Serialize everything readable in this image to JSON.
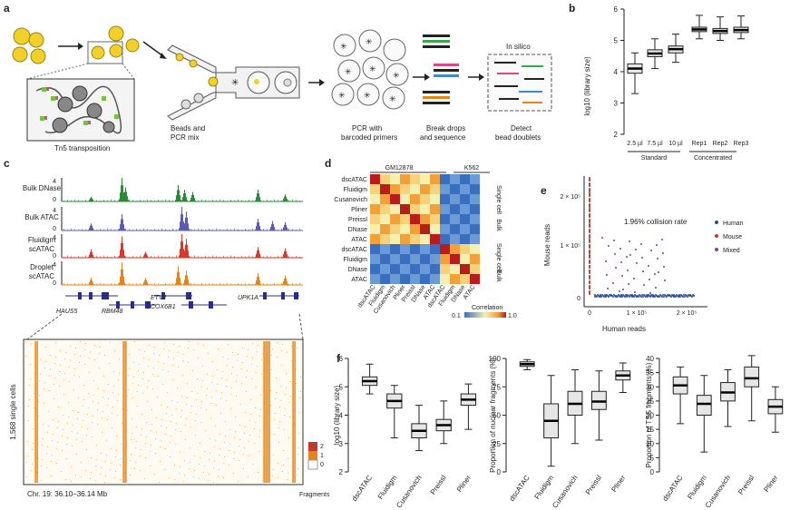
{
  "panel_labels": {
    "a": "a",
    "b": "b",
    "c": "c",
    "d": "d",
    "e": "e",
    "f": "f"
  },
  "panel_a": {
    "tn5_label": "Tn5 transposition",
    "beads_label_1": "Beads and",
    "beads_label_2": "PCR mix",
    "pcr_label_1": "PCR with",
    "pcr_label_2": "barcoded primers",
    "break_label_1": "Break drops",
    "break_label_2": "and sequence",
    "detect_label_1": "Detect",
    "detect_label_2": "bead doublets",
    "insilico": "In silico",
    "colors": {
      "cell": "#f3d028",
      "bead": "#e9e9e9",
      "arrow": "#222222"
    }
  },
  "panel_b": {
    "ylabel": "log10 (library size)",
    "ticks": [
      "2",
      "3",
      "4",
      "5",
      "6"
    ],
    "group_standard": "Standard",
    "group_concentrated": "Concentrated",
    "chart_data": {
      "type": "box",
      "categories": [
        "2.5 µl",
        "7.5 µl",
        "10 µl",
        "Rep1",
        "Rep2",
        "Rep3"
      ],
      "ylim": [
        2,
        6
      ],
      "boxes": [
        {
          "min": 3.3,
          "q1": 3.95,
          "median": 4.1,
          "q3": 4.25,
          "max": 4.6
        },
        {
          "min": 4.1,
          "q1": 4.48,
          "median": 4.58,
          "q3": 4.7,
          "max": 5.05
        },
        {
          "min": 4.3,
          "q1": 4.6,
          "median": 4.72,
          "q3": 4.82,
          "max": 5.2
        },
        {
          "min": 5.05,
          "q1": 5.28,
          "median": 5.35,
          "q3": 5.42,
          "max": 5.8
        },
        {
          "min": 5.0,
          "q1": 5.22,
          "median": 5.3,
          "q3": 5.38,
          "max": 5.75
        },
        {
          "min": 5.05,
          "q1": 5.25,
          "median": 5.33,
          "q3": 5.42,
          "max": 5.78
        }
      ]
    }
  },
  "panel_c": {
    "tracks": [
      "Bulk DNase",
      "Bulk ATAC",
      "Fluidigm scATAC",
      "Droplet scATAC"
    ],
    "track_label_lines": [
      [
        "Bulk DNase"
      ],
      [
        "Bulk ATAC"
      ],
      [
        "Fluidigm",
        "scATAC"
      ],
      [
        "Droplet",
        "scATAC"
      ]
    ],
    "ymax": [
      "4",
      "4",
      "4",
      "4"
    ],
    "ymin": "0",
    "track_colors": [
      "#2a8a3a",
      "#5b5bb5",
      "#d63a2a",
      "#e8821a"
    ],
    "genes": [
      "HAUS5",
      "RBM48",
      "ETV2",
      "COX6B1",
      "UPK1A"
    ],
    "heatmap_ylabel": "1,568 single cells",
    "coords": "Chr. 19: 36.10–36.14 Mb",
    "legend_title": "Fragments",
    "legend_ticks": [
      "2",
      "1",
      "0"
    ]
  },
  "panel_d": {
    "group_gm": "GM12878",
    "group_k562": "K562",
    "rows": [
      "dscATAC",
      "Fluidigm",
      "Cusanovich",
      "Pliner",
      "Preissl",
      "DNase",
      "ATAC",
      "dscATAC",
      "Fluidigm",
      "DNase",
      "ATAC"
    ],
    "side_single": "Single cell",
    "side_bulk": "Bulk",
    "legend_label": "Correlation",
    "legend_min": "0.1",
    "legend_max": "1.0"
  },
  "panel_e": {
    "ylabel": "Mouse reads",
    "xlabel": "Human reads",
    "annotation": "1.96% collision rate",
    "yticks": [
      "2 × 10⁵",
      "1 × 10⁵",
      "0"
    ],
    "xticks": [
      "0",
      "1 × 10⁵",
      "2 × 10⁵"
    ],
    "legend": [
      {
        "label": "Human",
        "color": "#2b4b9a"
      },
      {
        "label": "Mouse",
        "color": "#c0392b"
      },
      {
        "label": "Mixed",
        "color": "#7b3fa0"
      }
    ]
  },
  "panel_f": {
    "plots": [
      {
        "ylabel": "log10 (library size)",
        "ticks": [
          "2",
          "3",
          "4",
          "5",
          "6"
        ],
        "ylim": [
          2,
          6
        ],
        "categories": [
          "dscATAC",
          "Fluidigm",
          "Cusanovich",
          "Preissl",
          "Pliner"
        ],
        "boxes": [
          {
            "min": 4.75,
            "q1": 5.05,
            "median": 5.2,
            "q3": 5.35,
            "max": 5.8
          },
          {
            "min": 3.2,
            "q1": 4.25,
            "median": 4.5,
            "q3": 4.75,
            "max": 5.05
          },
          {
            "min": 2.75,
            "q1": 3.2,
            "median": 3.45,
            "q3": 3.7,
            "max": 4.35
          },
          {
            "min": 3.0,
            "q1": 3.45,
            "median": 3.65,
            "q3": 3.85,
            "max": 4.5
          },
          {
            "min": 3.5,
            "q1": 4.35,
            "median": 4.55,
            "q3": 4.75,
            "max": 5.1
          }
        ]
      },
      {
        "ylabel": "Proportion of nuclear fragments (%)",
        "ticks": [
          "0",
          "25",
          "50",
          "75",
          "100"
        ],
        "ylim": [
          0,
          100
        ],
        "categories": [
          "dscATAC",
          "Fluidigm",
          "Cusanovich",
          "Preissl",
          "Pliner"
        ],
        "boxes": [
          {
            "min": 90,
            "q1": 93,
            "median": 95,
            "q3": 97,
            "max": 99
          },
          {
            "min": 5,
            "q1": 30,
            "median": 45,
            "q3": 60,
            "max": 85
          },
          {
            "min": 25,
            "q1": 50,
            "median": 60,
            "q3": 71,
            "max": 90
          },
          {
            "min": 28,
            "q1": 55,
            "median": 62,
            "q3": 71,
            "max": 89
          },
          {
            "min": 70,
            "q1": 81,
            "median": 85,
            "q3": 89,
            "max": 96
          }
        ]
      },
      {
        "ylabel": "Proportion of TSS fragments (%)",
        "ticks": [
          "0",
          "5",
          "10",
          "15",
          "20",
          "25",
          "30",
          "35",
          "40"
        ],
        "ylim": [
          0,
          40
        ],
        "categories": [
          "dscATAC",
          "Fluidigm",
          "Cusanovich",
          "Preissl",
          "Pliner"
        ],
        "boxes": [
          {
            "min": 17,
            "q1": 27.5,
            "median": 30.5,
            "q3": 33.5,
            "max": 37
          },
          {
            "min": 7,
            "q1": 20,
            "median": 24,
            "q3": 27,
            "max": 34
          },
          {
            "min": 16,
            "q1": 25,
            "median": 28,
            "q3": 31.5,
            "max": 36
          },
          {
            "min": 18,
            "q1": 30,
            "median": 33,
            "q3": 37,
            "max": 41
          },
          {
            "min": 14,
            "q1": 20.5,
            "median": 23,
            "q3": 25.5,
            "max": 30
          }
        ]
      }
    ]
  }
}
